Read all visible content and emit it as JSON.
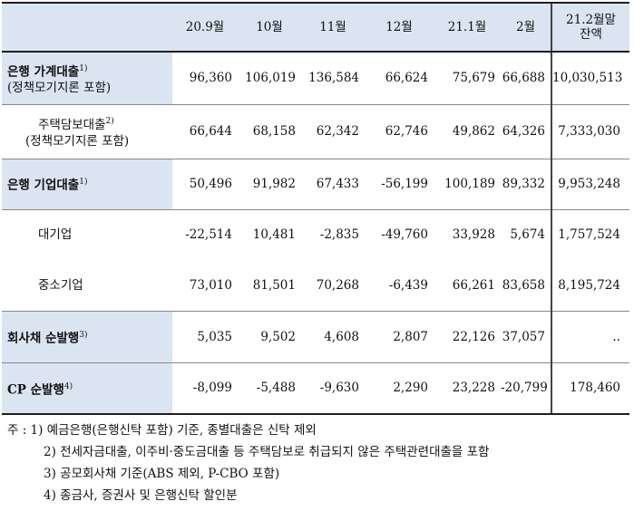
{
  "header": [
    "",
    "20.9월",
    "10월",
    "11월",
    "12월",
    "21.1월",
    "2월",
    "21.2월말\n잔액"
  ],
  "rows": [
    {
      "label": "은행 가계대출",
      "sup": "1)",
      "sub": "(정책모기지론 포함)",
      "values": [
        "96,360",
        "106,019",
        "136,584",
        "66,624",
        "75,679",
        "66,688",
        "10,030,513"
      ]
    },
    {
      "label": "주택담보대출",
      "sup": "2)",
      "sub": "(정책모기지론 포함)",
      "values": [
        "66,644",
        "68,158",
        "62,342",
        "62,746",
        "49,862",
        "64,326",
        "7,333,030"
      ]
    },
    {
      "label": "은행 기업대출",
      "sup": "1)",
      "values": [
        "50,496",
        "91,982",
        "67,433",
        "-56,199",
        "100,189",
        "89,332",
        "9,953,248"
      ]
    },
    {
      "label": "대기업",
      "values": [
        "-22,514",
        "10,481",
        "-2,835",
        "-49,760",
        "33,928",
        "5,674",
        "1,757,524"
      ]
    },
    {
      "label": "중소기업",
      "values": [
        "73,010",
        "81,501",
        "70,268",
        "-6,439",
        "66,261",
        "83,658",
        "8,195,724"
      ]
    },
    {
      "label": "회사채 순발행",
      "sup": "3)",
      "values": [
        "5,035",
        "9,502",
        "4,608",
        "2,807",
        "22,126",
        "37,057",
        ".."
      ]
    },
    {
      "label": "CP 순발행",
      "sup": "4)",
      "values": [
        "-8,099",
        "-5,488",
        "-9,630",
        "2,290",
        "23,228",
        "-20,799",
        "178,460"
      ]
    }
  ],
  "notes": [
    "주 : 1) 예금은행(은행신탁 포함) 기준, 종별대출은 신탁 제외",
    "2) 전세자금대출, 이주비·중도금대출 등 주택담보로 취급되지 않은 주택관련대출을 포함",
    "3) 공모회사채 기준(ABS 제외, P-CBO 포함)",
    "4) 종금사, 증권사 및 은행신탁 할인분"
  ]
}
